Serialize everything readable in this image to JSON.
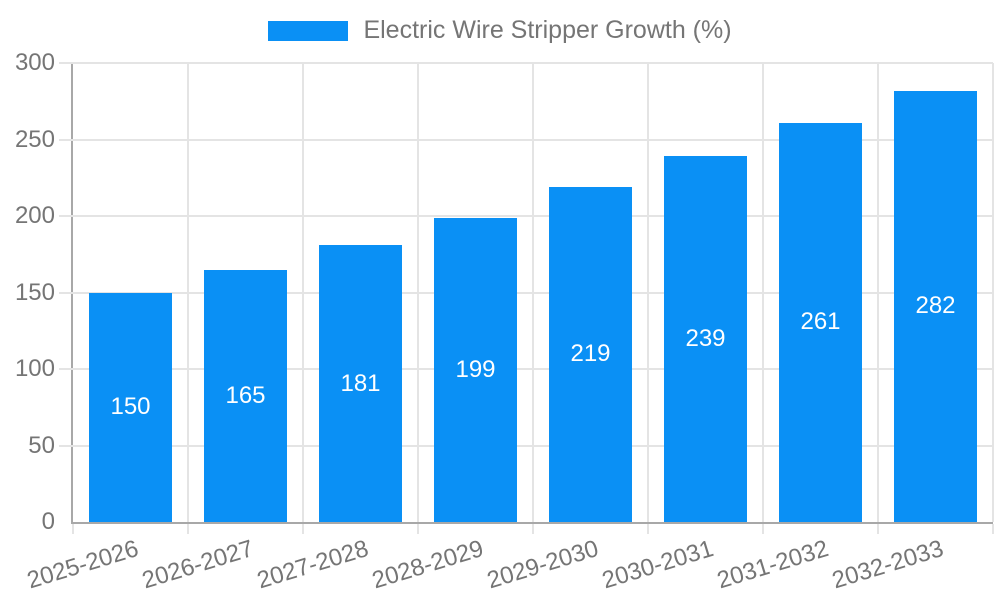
{
  "legend": {
    "label": "Electric Wire Stripper Growth (%)"
  },
  "colors": {
    "bar": "#0a90f5",
    "text": "#757575",
    "grid": "#e4e4e4",
    "axis": "#a8a8a8",
    "value_label": "#ffffff",
    "background": "#ffffff"
  },
  "chart_data": {
    "type": "bar",
    "title": "Electric Wire Stripper Growth (%)",
    "categories": [
      "2025-2026",
      "2026-2027",
      "2027-2028",
      "2028-2029",
      "2029-2030",
      "2030-2031",
      "2031-2032",
      "2032-2033"
    ],
    "values": [
      150,
      165,
      181,
      199,
      219,
      239,
      261,
      282
    ],
    "xlabel": "",
    "ylabel": "",
    "ylim": [
      0,
      300
    ],
    "yticks": [
      0,
      50,
      100,
      150,
      200,
      250,
      300
    ],
    "grid": true,
    "legend_position": "top-center",
    "value_labels": "inside-center",
    "x_label_rotation_deg": -17
  }
}
